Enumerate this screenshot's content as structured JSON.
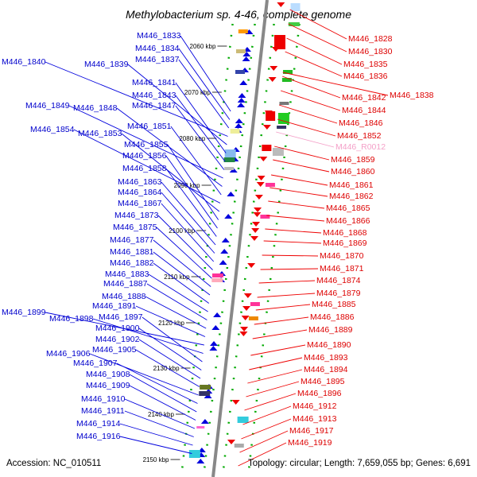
{
  "title": "Methylobacterium sp. 4-46, complete genome",
  "footer": {
    "accession": "Accession: NC_010511",
    "summary": "Topology: circular; Length: 7,659,055 bp; Genes: 6,691"
  },
  "colors": {
    "minus_strand": "#0000dd",
    "plus_strand": "#ee0000",
    "rna": "#f4a0c8",
    "axis": "#888888",
    "ticks": "#00aa00"
  },
  "kbp_ticks": [
    "2060 kbp",
    "2070 kbp",
    "2080 kbp",
    "2090 kbp",
    "2100 kbp",
    "2110 kbp",
    "2120 kbp",
    "2130 kbp",
    "2140 kbp",
    "2150 kbp"
  ],
  "left_labels": [
    "M446_1833",
    "M446_1834",
    "M446_1837",
    "M446_1840",
    "M446_1839",
    "M446_1841",
    "M446_1843",
    "M446_1847",
    "M446_1849",
    "M446_1848",
    "M446_1851",
    "M446_1854",
    "M446_1853",
    "M446_1855",
    "M446_1856",
    "M446_1858",
    "M446_1863",
    "M446_1864",
    "M446_1867",
    "M446_1873",
    "M446_1875",
    "M446_1877",
    "M446_1881",
    "M446_1882",
    "M446_1883",
    "M446_1887",
    "M446_1888",
    "M446_1891",
    "M446_1899",
    "M446_1898",
    "M446_1897",
    "M446_1900",
    "M446_1902",
    "M446_1905",
    "M446_1906",
    "M446_1907",
    "M446_1908",
    "M446_1909",
    "M446_1910",
    "M446_1911",
    "M446_1914",
    "M446_1916"
  ],
  "right_labels": [
    "M446_1828",
    "M446_1830",
    "M446_1835",
    "M446_1836",
    "M446_1838",
    "M446_1842",
    "M446_1844",
    "M446_1846",
    "M446_1852",
    "M446_R0012",
    "M446_1859",
    "M446_1860",
    "M446_1861",
    "M446_1862",
    "M446_1865",
    "M446_1866",
    "M446_1868",
    "M446_1869",
    "M446_1870",
    "M446_1871",
    "M446_1874",
    "M446_1879",
    "M446_1885",
    "M446_1886",
    "M446_1889",
    "M446_1890",
    "M446_1893",
    "M446_1894",
    "M446_1895",
    "M446_1896",
    "M446_1912",
    "M446_1913",
    "M446_1917",
    "M446_1919"
  ]
}
